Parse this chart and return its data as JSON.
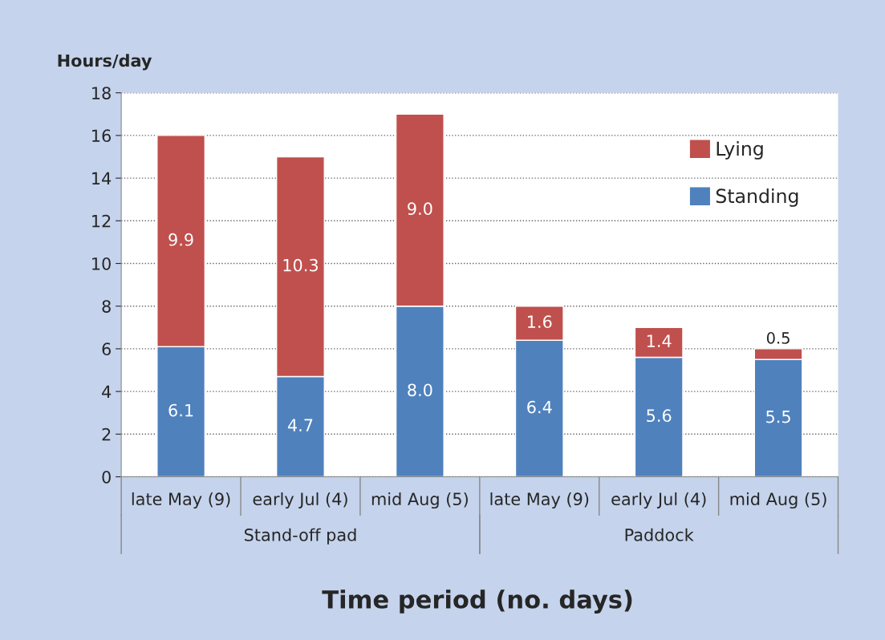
{
  "chart_data": {
    "type": "bar",
    "stacked": true,
    "ylabel": "Hours/day",
    "xlabel": "Time period (no. days)",
    "categories": [
      "late May (9)",
      "early Jul (4)",
      "mid Aug (5)",
      "late May (9)",
      "early Jul (4)",
      "mid Aug (5)"
    ],
    "series": [
      {
        "name": "Standing",
        "color": "#4f81bd",
        "values": [
          6.1,
          4.7,
          8.0,
          6.4,
          5.6,
          5.5
        ],
        "value_labels": [
          "6.1",
          "4.7",
          "8.0",
          "6.4",
          "5.6",
          "5.5"
        ]
      },
      {
        "name": "Lying",
        "color": "#c0504d",
        "values": [
          9.9,
          10.3,
          9.0,
          1.6,
          1.4,
          0.5
        ],
        "value_labels": [
          "9.9",
          "10.3",
          "9.0",
          "1.6",
          "1.4",
          "0.5"
        ]
      }
    ],
    "annotations": [
      "Stand-off pad",
      "Paddock"
    ],
    "ylim": [
      0,
      18
    ],
    "yticks": [
      0,
      2,
      4,
      6,
      8,
      10,
      12,
      14,
      16,
      18
    ],
    "grid": "y",
    "legend": "top right"
  }
}
